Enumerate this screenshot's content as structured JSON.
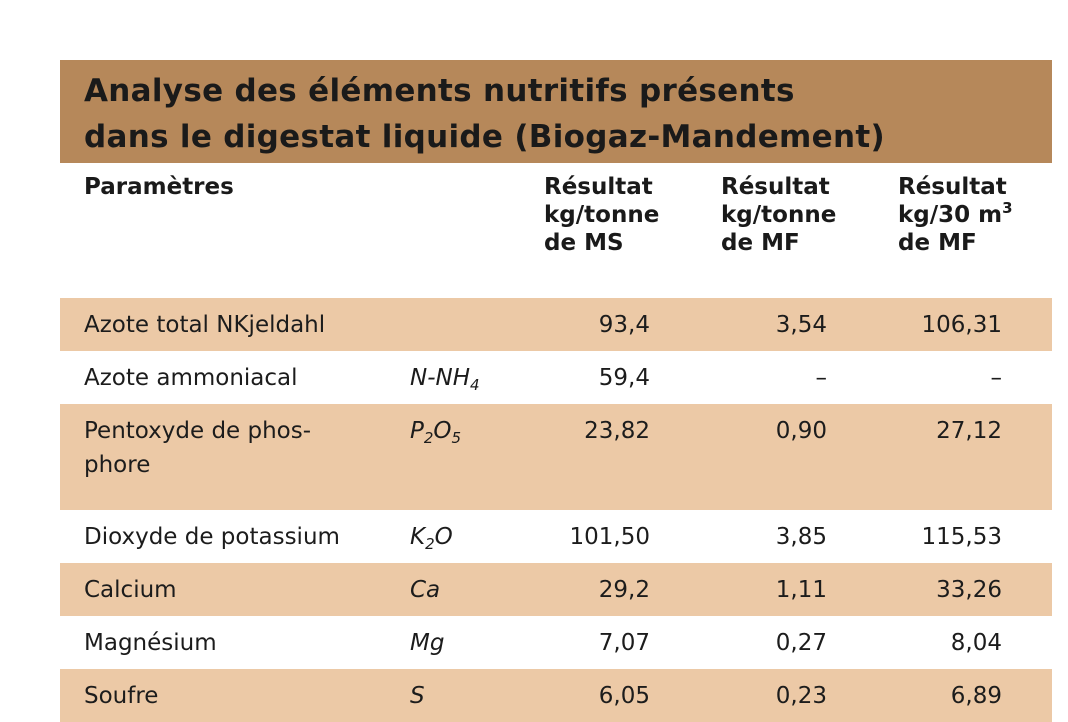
{
  "title": {
    "line1": "Analyse des éléments nutritifs présents",
    "line2": "dans le digestat liquide (Biogaz-Mandement)"
  },
  "header": {
    "param": "Paramètres",
    "col_ms": [
      "Résultat",
      "kg/tonne",
      "de MS"
    ],
    "col_mf": [
      "Résultat",
      "kg/tonne",
      "de MF"
    ],
    "col_m3": {
      "line1": "Résultat",
      "line2_pre": "kg/30 m",
      "line2_sup": "3",
      "line3": "de MF"
    }
  },
  "rows": [
    {
      "param": "Azote total NKjeldahl",
      "param2": "",
      "sym": [],
      "ms": "93,4",
      "mf": "3,54",
      "m3": "106,31"
    },
    {
      "param": "Azote ammoniacal",
      "param2": "",
      "sym": [
        {
          "t": "N-NH"
        },
        {
          "sub": "4"
        }
      ],
      "ms": "59,4",
      "mf": "–",
      "m3": "–"
    },
    {
      "param": "Pentoxyde de phos-",
      "param2": "phore",
      "sym": [
        {
          "t": "P"
        },
        {
          "sub": "2"
        },
        {
          "t": "O"
        },
        {
          "sub": "5"
        }
      ],
      "ms": "23,82",
      "mf": "0,90",
      "m3": "27,12"
    },
    {
      "param": "Dioxyde de potassium",
      "param2": "",
      "sym": [
        {
          "t": "K"
        },
        {
          "sub": "2"
        },
        {
          "t": "O"
        }
      ],
      "ms": "101,50",
      "mf": "3,85",
      "m3": "115,53"
    },
    {
      "param": "Calcium",
      "param2": "",
      "sym": [
        {
          "t": "Ca"
        }
      ],
      "ms": "29,2",
      "mf": "1,11",
      "m3": "33,26"
    },
    {
      "param": "Magnésium",
      "param2": "",
      "sym": [
        {
          "t": "Mg"
        }
      ],
      "ms": "7,07",
      "mf": "0,27",
      "m3": "8,04"
    },
    {
      "param": "Soufre",
      "param2": "",
      "sym": [
        {
          "t": "S"
        }
      ],
      "ms": "6,05",
      "mf": "0,23",
      "m3": "6,89"
    }
  ],
  "colors": {
    "title_bg": "#b6885a",
    "row_shade": "#ecc9a6"
  }
}
